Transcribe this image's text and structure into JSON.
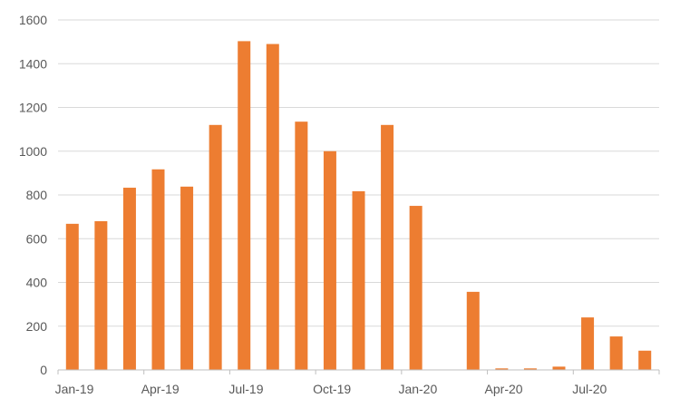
{
  "chart_data": {
    "type": "bar",
    "categories": [
      "Jan-19",
      "Feb-19",
      "Mar-19",
      "Apr-19",
      "May-19",
      "Jun-19",
      "Jul-19",
      "Aug-19",
      "Sep-19",
      "Oct-19",
      "Nov-19",
      "Dec-19",
      "Jan-20",
      "Feb-20",
      "Mar-20",
      "Apr-20",
      "May-20",
      "Jun-20",
      "Jul-20",
      "Aug-20",
      "Sep-20"
    ],
    "series": [
      {
        "values": [
          668,
          680,
          833,
          917,
          838,
          1120,
          1503,
          1490,
          1135,
          1000,
          817,
          1120,
          750,
          0,
          357,
          7,
          7,
          15,
          240,
          153,
          88
        ],
        "color": "#ED7D31"
      }
    ],
    "x_tick_labels": [
      "Jan-19",
      "Apr-19",
      "Jul-19",
      "Oct-19",
      "Jan-20",
      "Apr-20",
      "Jul-20"
    ],
    "y_tick_labels": [
      "0",
      "200",
      "400",
      "600",
      "800",
      "1000",
      "1200",
      "1400",
      "1600"
    ],
    "ylim": [
      0,
      1600
    ],
    "grid": true,
    "title": "",
    "xlabel": "",
    "ylabel": ""
  },
  "colors": {
    "bar": "#ED7D31",
    "grid": "#D9D9D9",
    "axis": "#BFBFBF",
    "tick_text": "#595959"
  }
}
